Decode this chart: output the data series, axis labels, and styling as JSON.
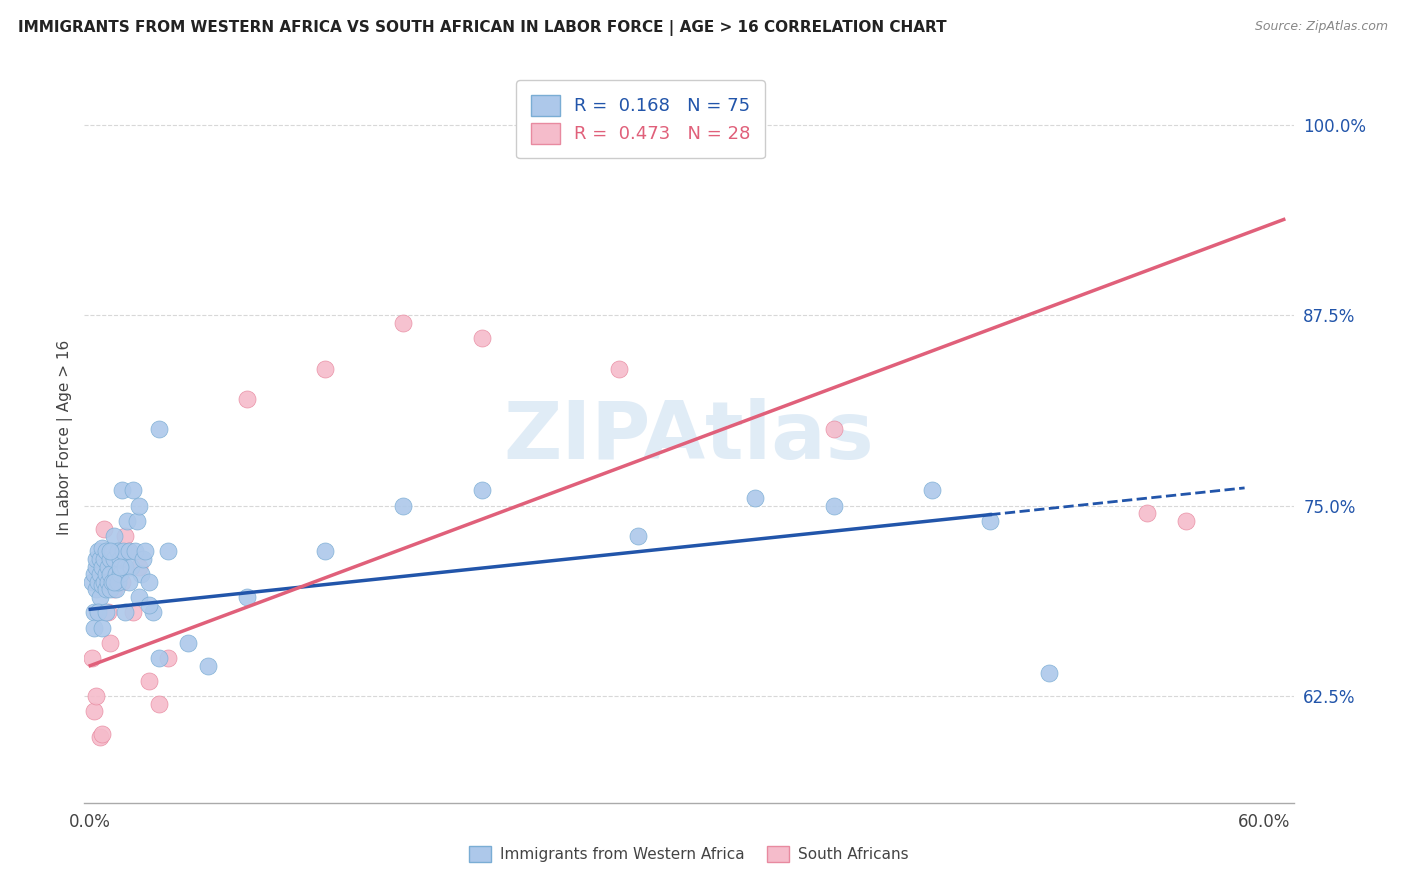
{
  "title": "IMMIGRANTS FROM WESTERN AFRICA VS SOUTH AFRICAN IN LABOR FORCE | AGE > 16 CORRELATION CHART",
  "source": "Source: ZipAtlas.com",
  "ylabel": "In Labor Force | Age > 16",
  "xlim": [
    -0.003,
    0.615
  ],
  "ylim": [
    0.555,
    1.035
  ],
  "xtick_positions": [
    0.0,
    0.1,
    0.2,
    0.3,
    0.4,
    0.5,
    0.6
  ],
  "xticklabels": [
    "0.0%",
    "",
    "",
    "",
    "",
    "",
    "60.0%"
  ],
  "ytick_positions": [
    0.625,
    0.75,
    0.875,
    1.0
  ],
  "yticklabels": [
    "62.5%",
    "75.0%",
    "87.5%",
    "100.0%"
  ],
  "blue_R": 0.168,
  "blue_N": 75,
  "pink_R": 0.473,
  "pink_N": 28,
  "blue_dot_color": "#adc8ea",
  "blue_edge_color": "#7aadd4",
  "blue_line_color": "#2255aa",
  "pink_dot_color": "#f5bccb",
  "pink_edge_color": "#e88aa0",
  "pink_line_color": "#e0607a",
  "watermark_color": "#c8ddf0",
  "bg_color": "#ffffff",
  "grid_color": "#d8d8d8",
  "blue_scatter_x": [
    0.001,
    0.002,
    0.002,
    0.003,
    0.003,
    0.003,
    0.004,
    0.004,
    0.005,
    0.005,
    0.005,
    0.006,
    0.006,
    0.006,
    0.007,
    0.007,
    0.008,
    0.008,
    0.008,
    0.009,
    0.009,
    0.01,
    0.01,
    0.01,
    0.011,
    0.011,
    0.012,
    0.012,
    0.013,
    0.013,
    0.014,
    0.014,
    0.015,
    0.015,
    0.016,
    0.017,
    0.018,
    0.019,
    0.02,
    0.021,
    0.022,
    0.023,
    0.024,
    0.025,
    0.026,
    0.027,
    0.028,
    0.03,
    0.032,
    0.035,
    0.002,
    0.004,
    0.006,
    0.008,
    0.01,
    0.012,
    0.015,
    0.018,
    0.02,
    0.025,
    0.03,
    0.035,
    0.04,
    0.05,
    0.06,
    0.08,
    0.12,
    0.16,
    0.2,
    0.28,
    0.34,
    0.38,
    0.43,
    0.46,
    0.49
  ],
  "blue_scatter_y": [
    0.7,
    0.705,
    0.68,
    0.71,
    0.695,
    0.715,
    0.7,
    0.72,
    0.69,
    0.705,
    0.715,
    0.698,
    0.71,
    0.722,
    0.7,
    0.715,
    0.705,
    0.695,
    0.72,
    0.71,
    0.7,
    0.715,
    0.705,
    0.695,
    0.72,
    0.7,
    0.715,
    0.73,
    0.705,
    0.695,
    0.72,
    0.7,
    0.715,
    0.705,
    0.76,
    0.72,
    0.71,
    0.74,
    0.72,
    0.71,
    0.76,
    0.72,
    0.74,
    0.75,
    0.705,
    0.715,
    0.72,
    0.7,
    0.68,
    0.8,
    0.67,
    0.68,
    0.67,
    0.68,
    0.72,
    0.7,
    0.71,
    0.68,
    0.7,
    0.69,
    0.685,
    0.65,
    0.72,
    0.66,
    0.645,
    0.69,
    0.72,
    0.75,
    0.76,
    0.73,
    0.755,
    0.75,
    0.76,
    0.74,
    0.64
  ],
  "pink_scatter_x": [
    0.001,
    0.002,
    0.003,
    0.004,
    0.005,
    0.006,
    0.007,
    0.008,
    0.009,
    0.01,
    0.012,
    0.014,
    0.016,
    0.018,
    0.02,
    0.022,
    0.025,
    0.03,
    0.035,
    0.04,
    0.08,
    0.12,
    0.16,
    0.2,
    0.27,
    0.38,
    0.54,
    0.56
  ],
  "pink_scatter_y": [
    0.65,
    0.615,
    0.625,
    0.68,
    0.598,
    0.6,
    0.735,
    0.698,
    0.68,
    0.66,
    0.695,
    0.72,
    0.7,
    0.73,
    0.72,
    0.68,
    0.71,
    0.635,
    0.62,
    0.65,
    0.82,
    0.84,
    0.87,
    0.86,
    0.84,
    0.8,
    0.745,
    0.74
  ],
  "blue_trend_x_start": 0.0,
  "blue_trend_x_solid_end": 0.46,
  "blue_trend_x_dash_end": 0.59,
  "pink_trend_x_start": 0.0,
  "pink_trend_x_end": 0.61,
  "blue_intercept": 0.682,
  "blue_slope": 0.135,
  "pink_intercept": 0.645,
  "pink_slope": 0.48
}
